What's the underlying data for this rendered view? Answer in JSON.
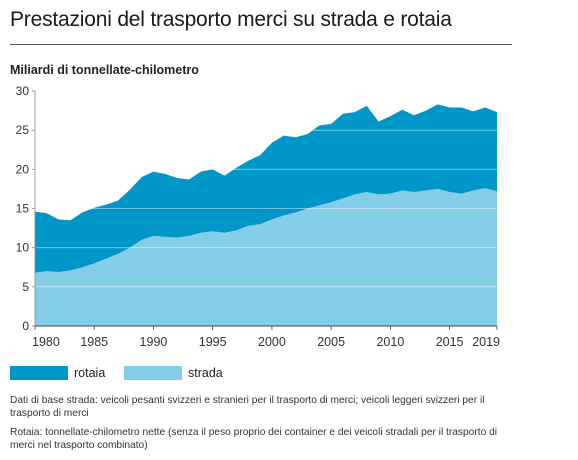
{
  "title": "Prestazioni del trasporto merci su strada e rotaia",
  "unit_label": "Miliardi di tonnellate-chilometro",
  "legend": [
    {
      "label": "rotaia",
      "color": "#0096c8"
    },
    {
      "label": "strada",
      "color": "#83cde8"
    }
  ],
  "notes": [
    "Dati di base strada: veicoli pesanti svizzeri e stranieri per il trasporto di merci; veicoli leggeri svizzeri per il trasporto di merci",
    "Rotaia: tonnellate-chilometro nette (senza il peso proprio dei container e dei veicoli stradali per il trasporto di merci nel trasporto combinato)"
  ],
  "chart_data": {
    "type": "area",
    "stacked": true,
    "x": [
      1980,
      1981,
      1982,
      1983,
      1984,
      1985,
      1986,
      1987,
      1988,
      1989,
      1990,
      1991,
      1992,
      1993,
      1994,
      1995,
      1996,
      1997,
      1998,
      1999,
      2000,
      2001,
      2002,
      2003,
      2004,
      2005,
      2006,
      2007,
      2008,
      2009,
      2010,
      2011,
      2012,
      2013,
      2014,
      2015,
      2016,
      2017,
      2018,
      2019
    ],
    "xticks": [
      "1980",
      "1985",
      "1990",
      "1995",
      "2000",
      "2005",
      "2010",
      "2015",
      "2019"
    ],
    "yticks": [
      "0",
      "5",
      "10",
      "15",
      "20",
      "25",
      "30"
    ],
    "ylim": [
      0,
      30
    ],
    "grid": true,
    "legend_position": "bottom",
    "series": [
      {
        "name": "strada",
        "color": "#83cde8",
        "values": [
          6.8,
          7.0,
          6.9,
          7.1,
          7.5,
          8.0,
          8.6,
          9.2,
          10.0,
          11.0,
          11.5,
          11.4,
          11.3,
          11.5,
          11.9,
          12.1,
          11.9,
          12.2,
          12.8,
          13.0,
          13.6,
          14.1,
          14.5,
          15.0,
          15.4,
          15.8,
          16.3,
          16.8,
          17.1,
          16.8,
          16.9,
          17.3,
          17.1,
          17.3,
          17.5,
          17.1,
          16.9,
          17.3,
          17.6,
          17.2
        ]
      },
      {
        "name": "rotaia",
        "color": "#0096c8",
        "values": [
          7.8,
          7.4,
          6.7,
          6.4,
          7.0,
          7.1,
          6.9,
          6.8,
          7.4,
          8.0,
          8.2,
          8.0,
          7.6,
          7.2,
          7.8,
          7.9,
          7.3,
          8.0,
          8.3,
          8.8,
          9.8,
          10.2,
          9.6,
          9.5,
          10.2,
          10.0,
          10.8,
          10.5,
          11.0,
          9.3,
          9.9,
          10.3,
          9.8,
          10.2,
          10.8,
          10.8,
          11.0,
          10.1,
          10.3,
          10.1
        ]
      }
    ]
  }
}
